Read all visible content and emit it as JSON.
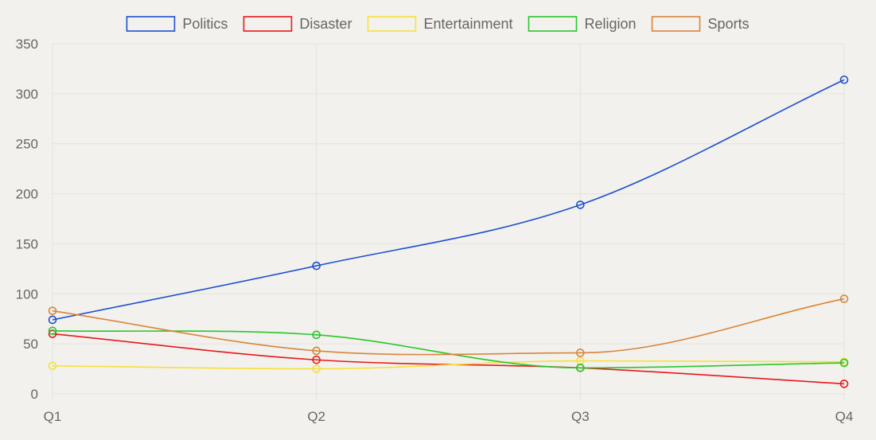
{
  "chart_data": {
    "type": "line",
    "categories": [
      "Q1",
      "Q2",
      "Q3",
      "Q4"
    ],
    "ylim": [
      0,
      350
    ],
    "yticks": [
      0,
      50,
      100,
      150,
      200,
      250,
      300,
      350
    ],
    "grid": true,
    "legend_position": "top-center",
    "series": [
      {
        "name": "Politics",
        "color": "#1f4fcf",
        "values": [
          74,
          128,
          189,
          314
        ]
      },
      {
        "name": "Disaster",
        "color": "#e8181c",
        "values": [
          60,
          34,
          26,
          10
        ]
      },
      {
        "name": "Entertainment",
        "color": "#f6e13a",
        "values": [
          28,
          25,
          33,
          32
        ]
      },
      {
        "name": "Religion",
        "color": "#2cc52c",
        "values": [
          63,
          59,
          26,
          31
        ]
      },
      {
        "name": "Sports",
        "color": "#d9853a",
        "values": [
          83,
          43,
          41,
          95
        ]
      }
    ]
  }
}
